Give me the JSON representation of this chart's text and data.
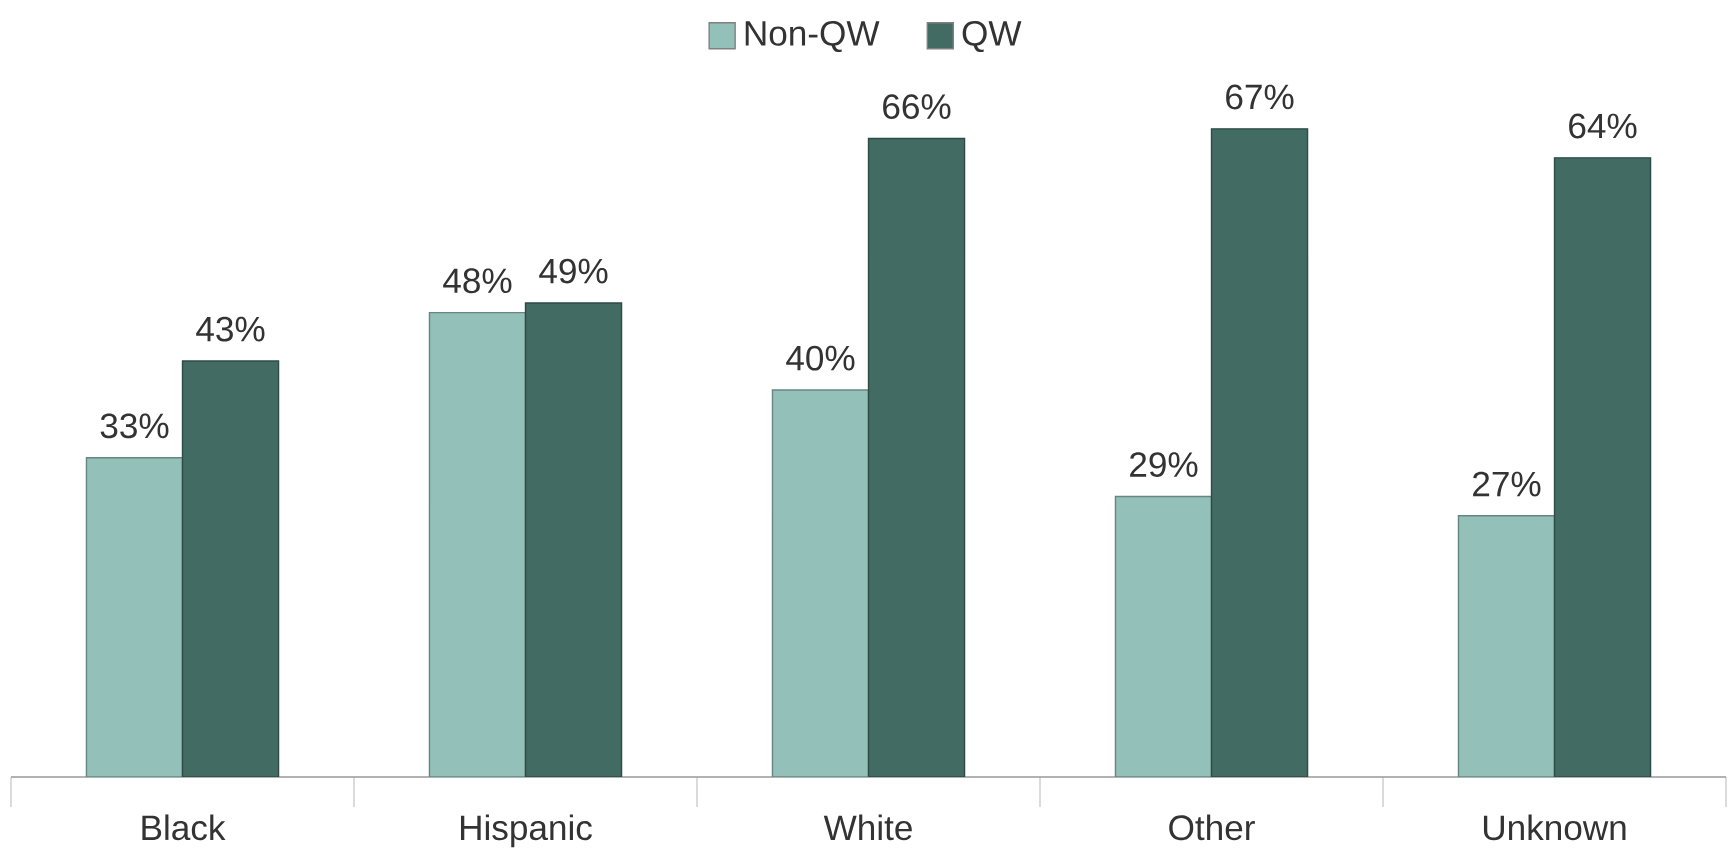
{
  "chart_data": {
    "type": "bar",
    "categories": [
      "Black",
      "Hispanic",
      "White",
      "Other",
      "Unknown"
    ],
    "series": [
      {
        "name": "Non-QW",
        "color": "#93c0b8",
        "values": [
          33,
          48,
          40,
          29,
          27
        ],
        "value_labels": [
          "33%",
          "48%",
          "40%",
          "29%",
          "27%"
        ]
      },
      {
        "name": "QW",
        "color": "#426b63",
        "values": [
          43,
          49,
          66,
          67,
          64
        ],
        "value_labels": [
          "43%",
          "49%",
          "66%",
          "67%",
          "64%"
        ]
      }
    ],
    "legend": "top"
  }
}
